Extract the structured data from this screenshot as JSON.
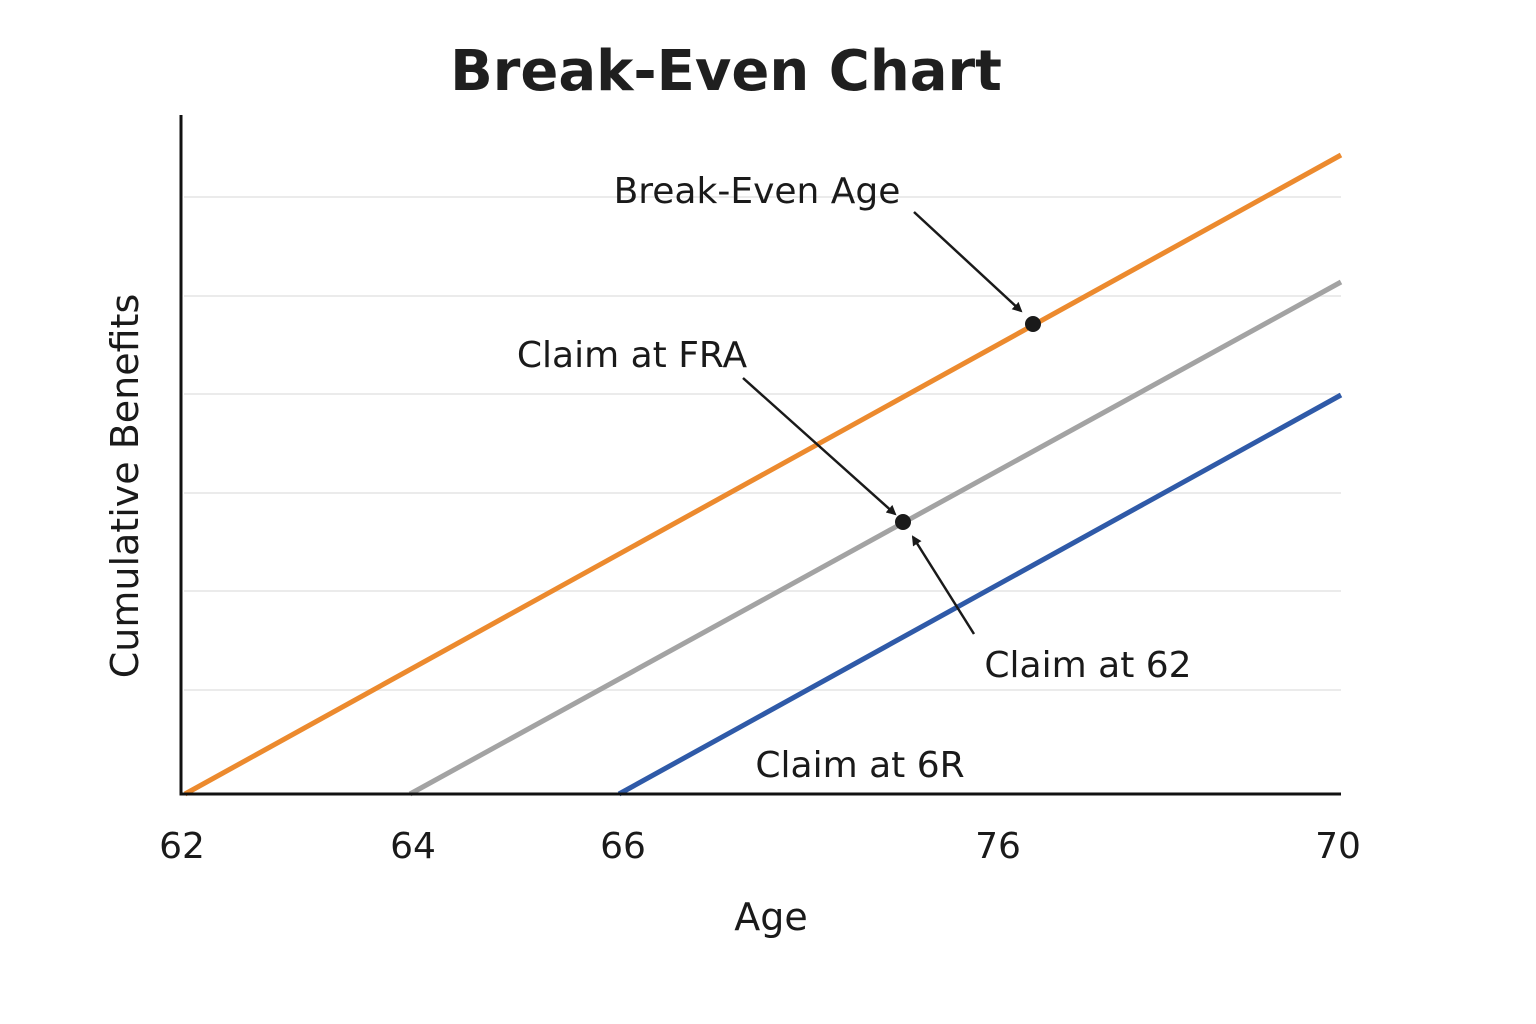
{
  "chart_data": {
    "type": "line",
    "title": "Break-Even Chart",
    "xlabel": "Age",
    "ylabel": "Cumulative Benefits",
    "x_tick_labels": [
      "62",
      "64",
      "66",
      "76",
      "70"
    ],
    "ylim": [
      0,
      6.5
    ],
    "y_tick_labels": [],
    "grid": true,
    "gridline_values": [
      1,
      2,
      3,
      4,
      5,
      6
    ],
    "legend": "none",
    "series": [
      {
        "color": "#ec8a2e",
        "x": [
          0,
          10
        ],
        "y": [
          0,
          6.4
        ]
      },
      {
        "color": "#a3a3a3",
        "x": [
          2,
          10
        ],
        "y": [
          0,
          5.1
        ]
      },
      {
        "color": "#2f5aa8",
        "x": [
          3.8,
          10
        ],
        "y": [
          0,
          4
        ]
      }
    ],
    "markers": [
      {
        "x": 7.35,
        "y": 4.7
      },
      {
        "x": 6.22,
        "y": 2.7
      }
    ],
    "annotations": [
      {
        "text": "Break-Even Age"
      },
      {
        "text": "Claim at FRA"
      },
      {
        "text": "Claim at 62"
      },
      {
        "text": "Claim at 6R"
      }
    ]
  }
}
